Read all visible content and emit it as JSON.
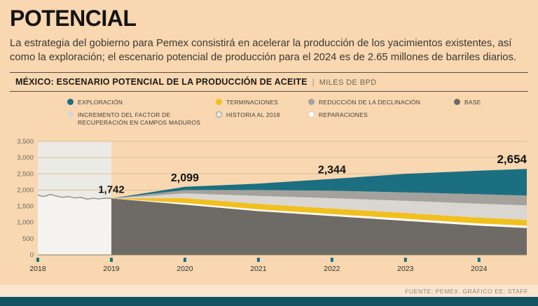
{
  "page": {
    "title": "POTENCIAL",
    "subtitle": "La estrategia del gobierno para Pemex consistirá en acelerar la producción de los yacimientos existentes, así como la exploración; el escenario potencial de producción para el 2024 es de 2.65 millones de barriles diarios.",
    "source": "FUENTE: PEMEX. GRÁFICO EE: STAFF."
  },
  "chart_header": {
    "title": "MÉXICO: ESCENARIO POTENCIAL DE LA PRODUCCIÓN DE ACEITE",
    "divider": "|",
    "units": "MILES DE BPD"
  },
  "colors": {
    "background": "#f8d7b1",
    "accent_teal": "#1c6f80",
    "bottom_bar": "#125460",
    "yellow": "#f2c01d",
    "gray_mid": "#a5a29d",
    "gray_dark": "#6e6b67",
    "gray_light": "#dad7d2",
    "white_band": "#fdfcf9"
  },
  "chart_data": {
    "type": "area",
    "stacked": true,
    "title": "MÉXICO: ESCENARIO POTENCIAL DE LA PRODUCCIÓN DE ACEITE",
    "units": "MILES DE BPD",
    "xlim": [
      2018,
      2024.65
    ],
    "ylim": [
      0,
      3500
    ],
    "yticks": [
      0,
      500,
      1000,
      1500,
      2000,
      2500,
      3000,
      3500
    ],
    "ytick_labels": [
      "0",
      "500",
      "1,000",
      "1,500",
      "2,000",
      "2,500",
      "3,000",
      "3,500"
    ],
    "xticks": [
      2018,
      2019,
      2020,
      2021,
      2022,
      2023,
      2024
    ],
    "x": [
      2019,
      2020,
      2021,
      2022,
      2023,
      2024,
      2024.65
    ],
    "series": [
      {
        "name": "BASE",
        "color": "#6e6b67",
        "values": [
          1742,
          1550,
          1350,
          1200,
          1050,
          900,
          830
        ]
      },
      {
        "name": "REPARACIONES",
        "color": "#fdfcf9",
        "values": [
          0,
          50,
          55,
          60,
          65,
          70,
          70
        ]
      },
      {
        "name": "TERMINACIONES",
        "color": "#f2c01d",
        "values": [
          0,
          150,
          165,
          170,
          175,
          180,
          180
        ]
      },
      {
        "name": "INCREMENTO DEL FACTOR DE RECUPERACIÓN EN CAMPOS MADUROS",
        "color": "#dad7d2",
        "values": [
          0,
          150,
          250,
          320,
          380,
          430,
          450
        ]
      },
      {
        "name": "REDUCCIÓN DE LA DECLINACIÓN",
        "color": "#a5a29d",
        "values": [
          0,
          100,
          180,
          230,
          260,
          290,
          300
        ]
      },
      {
        "name": "EXPLORACIÓN",
        "color": "#1c6f80",
        "values": [
          0,
          99,
          200,
          364,
          570,
          730,
          824
        ]
      }
    ],
    "history": {
      "name": "HISTORIA AL 2018",
      "x": [
        2018,
        2018.08,
        2018.17,
        2018.25,
        2018.33,
        2018.42,
        2018.5,
        2018.58,
        2018.67,
        2018.75,
        2018.83,
        2018.92,
        2019
      ],
      "values": [
        1845,
        1800,
        1865,
        1815,
        1775,
        1800,
        1755,
        1775,
        1720,
        1748,
        1728,
        1752,
        1742
      ]
    },
    "annotations": [
      {
        "x": 2019,
        "y": 1742,
        "label": "1,742",
        "anchor": "middle",
        "size": 15
      },
      {
        "x": 2020,
        "y": 2099,
        "label": "2,099",
        "anchor": "middle",
        "size": 16
      },
      {
        "x": 2022,
        "y": 2344,
        "label": "2,344",
        "anchor": "middle",
        "size": 16
      },
      {
        "x": 2024.65,
        "y": 2654,
        "label": "2,654",
        "anchor": "end",
        "size": 17
      }
    ],
    "legend": [
      {
        "label": "EXPLORACIÓN",
        "color": "#1c6f80",
        "row": 1
      },
      {
        "label": "TERMINACIONES",
        "color": "#f2c01d",
        "row": 1
      },
      {
        "label": "REDUCCIÓN DE LA DECLINACIÓN",
        "color": "#a5a29d",
        "row": 1
      },
      {
        "label": "BASE",
        "color": "#6e6b67",
        "row": 1
      },
      {
        "label": "INCREMENTO DEL FACTOR DE RECUPERACIÓN EN CAMPOS MADUROS",
        "color": "#dad7d2",
        "row": 2
      },
      {
        "label": "HISTORIA AL 2018",
        "color": "#e9e7e2",
        "outline": "#9a9691",
        "row": 2
      },
      {
        "label": "REPARACIONES",
        "color": "#ffffff",
        "row": 2
      }
    ]
  }
}
